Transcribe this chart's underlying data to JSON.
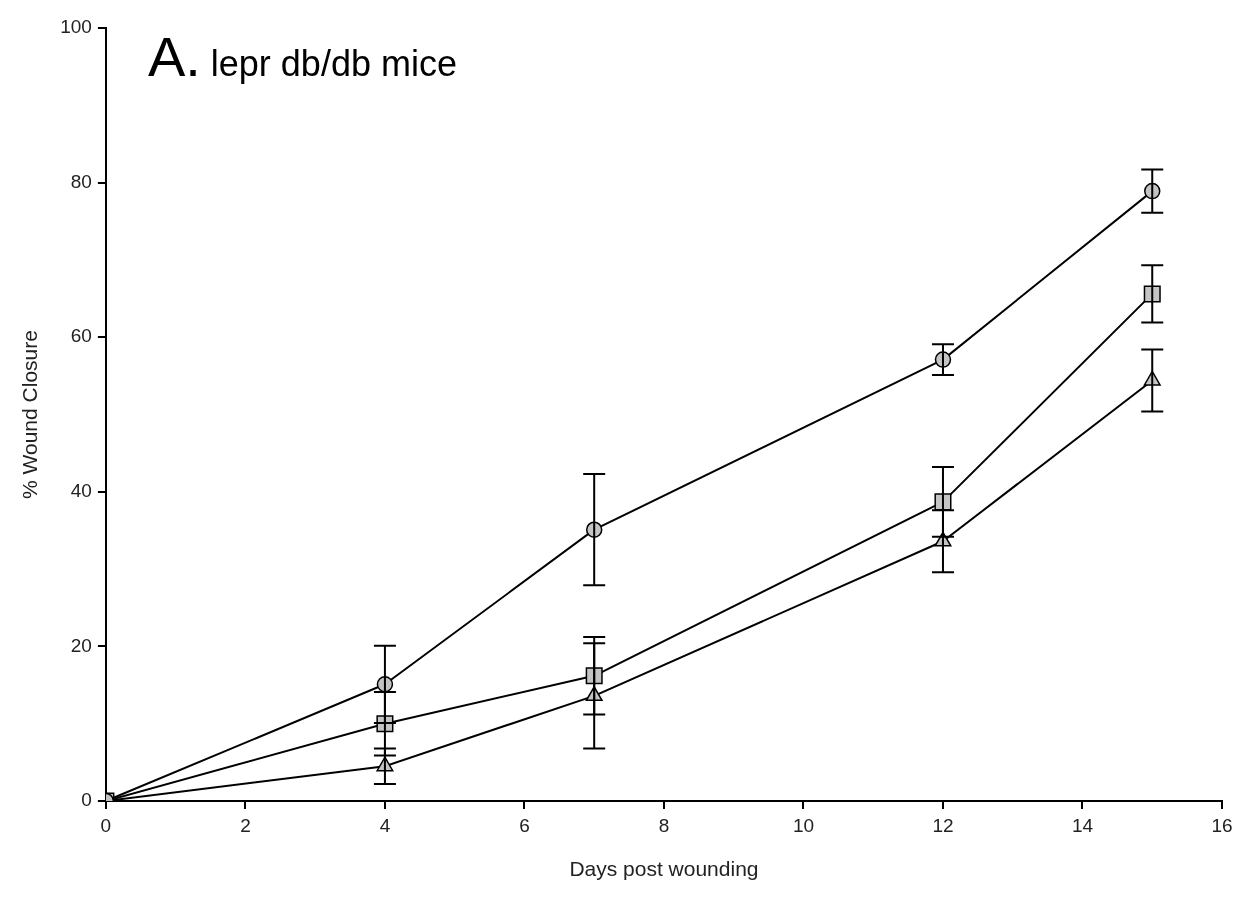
{
  "chart_data": {
    "type": "line",
    "title": "A. lepr db/db mice",
    "xlabel": "Days post wounding",
    "ylabel": "% Wound Closure",
    "x": [
      0,
      4,
      7,
      12,
      15
    ],
    "series": [
      {
        "color": "#000000",
        "marker": "circle",
        "values": [
          0,
          15.1,
          35.1,
          57.1,
          78.9
        ],
        "errors": [
          null,
          5,
          7.2,
          2,
          2.8
        ]
      },
      {
        "color": "#000000",
        "marker": "square",
        "values": [
          0,
          10,
          16.2,
          38.7,
          65.6
        ],
        "errors": [
          null,
          4.1,
          5,
          4.5,
          3.7
        ]
      },
      {
        "color": "#000000",
        "marker": "triangle",
        "values": [
          0,
          4.5,
          13.6,
          33.6,
          54.4
        ],
        "errors": [
          null,
          2.3,
          6.8,
          4,
          4
        ]
      }
    ],
    "xlim": [
      0,
      16
    ],
    "xticks": [
      0,
      2,
      4,
      6,
      8,
      10,
      12,
      14,
      16
    ],
    "ylim": [
      0,
      100
    ],
    "yticks": [
      0,
      20,
      40,
      60,
      80,
      100
    ],
    "grid": false,
    "legend": false,
    "line_style": "solid"
  }
}
